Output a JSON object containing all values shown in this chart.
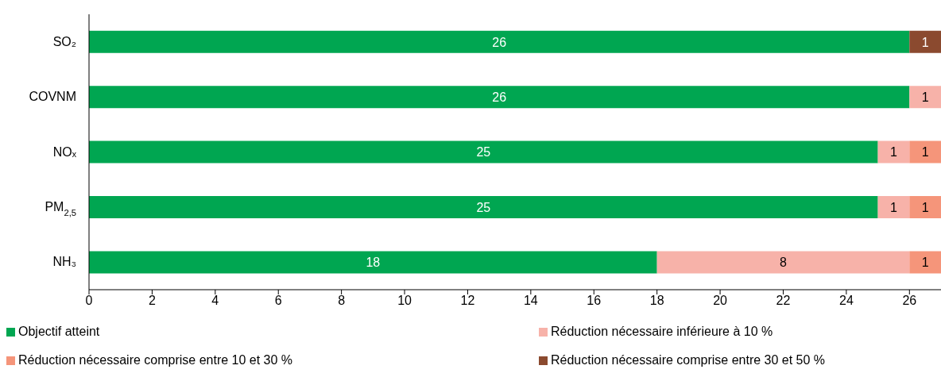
{
  "chart_data": {
    "type": "bar",
    "orientation": "horizontal",
    "stacked": true,
    "categories": [
      "SO₂",
      "COVNM",
      "NOₓ",
      "PM$_{2,5}$",
      "NH₃"
    ],
    "series": [
      {
        "name": "Objectif atteint",
        "color": "#00a651",
        "values": [
          26,
          26,
          25,
          25,
          18
        ]
      },
      {
        "name": "Réduction nécessaire inférieure à 10 %",
        "color": "#f7b2a9",
        "values": [
          null,
          1,
          1,
          1,
          8
        ]
      },
      {
        "name": "Réduction nécessaire comprise entre 10 et 30 %",
        "color": "#f5957a",
        "values": [
          null,
          null,
          1,
          1,
          1
        ]
      },
      {
        "name": "Réduction nécessaire comprise entre 30 et 50 %",
        "color": "#8b4a2f",
        "values": [
          1,
          null,
          null,
          null,
          null
        ]
      }
    ],
    "xlim": [
      0,
      27
    ],
    "xticks": [
      0,
      2,
      4,
      6,
      8,
      10,
      12,
      14,
      16,
      18,
      20,
      22,
      24,
      26
    ],
    "data_labels": true,
    "grid": false,
    "legend": "bottom"
  }
}
